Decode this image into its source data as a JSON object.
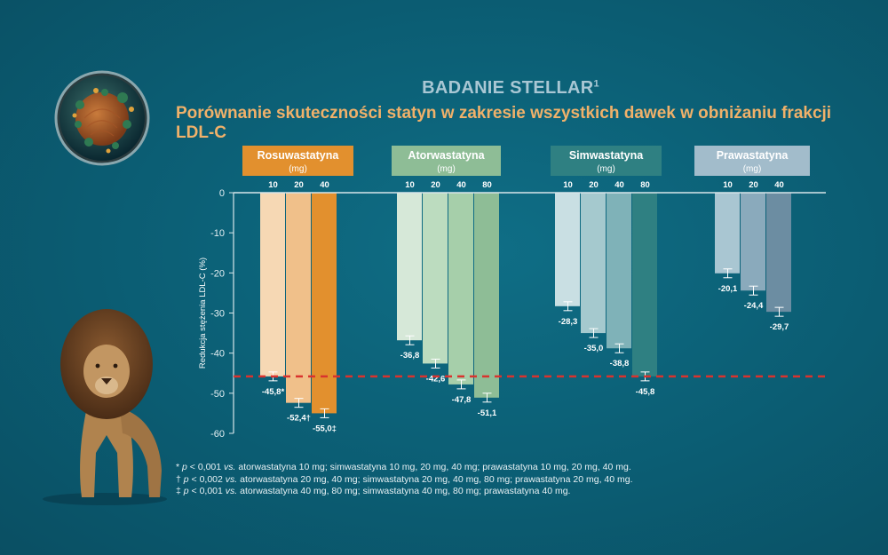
{
  "header": {
    "title": "BADANIE STELLAR",
    "title_sup": "1",
    "subtitle": "Porównanie skuteczności statyn w zakresie wszystkich dawek w obniżaniu frakcji LDL-C"
  },
  "icons": {
    "badge": "virus-cell-icon",
    "mascot": "lion-illustration"
  },
  "colors": {
    "background": "#0b5d73",
    "title": "#a9c7d4",
    "subtitle": "#f0b16a",
    "reference_line": "#d9332e",
    "groups": {
      "Rosuwastatyna": {
        "header": "#e2902e",
        "bars": [
          "#f6d8b4",
          "#f0c08a",
          "#e2902e"
        ]
      },
      "Atorwastatyna": {
        "header": "#8ebd96",
        "bars": [
          "#d6e8d8",
          "#bcdcbf",
          "#a6cfaa",
          "#8ebd96"
        ]
      },
      "Simwastatyna": {
        "header": "#2f8082",
        "bars": [
          "#c9dfe3",
          "#a5c9ce",
          "#7fb2b8",
          "#2f8082"
        ]
      },
      "Prawastatyna": {
        "header": "#a2bccb",
        "bars": [
          "#a9c6d2",
          "#8aaabc",
          "#6c8da2"
        ]
      }
    }
  },
  "chart_data": {
    "type": "bar",
    "ylabel": "Redukcja stężenia LDL-C (%)",
    "ylim": [
      -60,
      0
    ],
    "yticks": [
      0,
      -10,
      -20,
      -30,
      -40,
      -50,
      -60
    ],
    "unit_label": "(mg)",
    "reference_line": {
      "value": -45.8,
      "style": "dashed"
    },
    "groups": [
      {
        "name": "Rosuwastatyna",
        "doses": [
          "10",
          "20",
          "40"
        ],
        "values": [
          -45.8,
          -52.4,
          -55.0
        ],
        "labels": [
          "-45,8*",
          "-52,4†",
          "-55,0‡"
        ]
      },
      {
        "name": "Atorwastatyna",
        "doses": [
          "10",
          "20",
          "40",
          "80"
        ],
        "values": [
          -36.8,
          -42.6,
          -47.8,
          -51.1
        ],
        "labels": [
          "-36,8",
          "-42,6",
          "-47,8",
          "-51,1"
        ]
      },
      {
        "name": "Simwastatyna",
        "doses": [
          "10",
          "20",
          "40",
          "80"
        ],
        "values": [
          -28.3,
          -35.0,
          -38.8,
          -45.8
        ],
        "labels": [
          "-28,3",
          "-35,0",
          "-38,8",
          "-45,8"
        ]
      },
      {
        "name": "Prawastatyna",
        "doses": [
          "10",
          "20",
          "40"
        ],
        "values": [
          -20.1,
          -24.4,
          -29.7
        ],
        "labels": [
          "-20,1",
          "-24,4",
          "-29,7"
        ]
      }
    ]
  },
  "footnotes": [
    {
      "symbol": "* p",
      "vs": "vs.",
      "lead": "< 0,001",
      "text": "atorwastatyna 10 mg; simwastatyna 10 mg, 20 mg, 40 mg; prawastatyna 10 mg, 20 mg, 40 mg."
    },
    {
      "symbol": "† p",
      "vs": "vs.",
      "lead": "< 0,002",
      "text": "atorwastatyna 20 mg, 40 mg; simwastatyna 20 mg, 40 mg, 80 mg; prawastatyna 20 mg, 40 mg."
    },
    {
      "symbol": "‡ p",
      "vs": "vs.",
      "lead": "< 0,001",
      "text": "atorwastatyna 40 mg, 80 mg; simwastatyna 40 mg, 80 mg; prawastatyna 40 mg."
    }
  ]
}
